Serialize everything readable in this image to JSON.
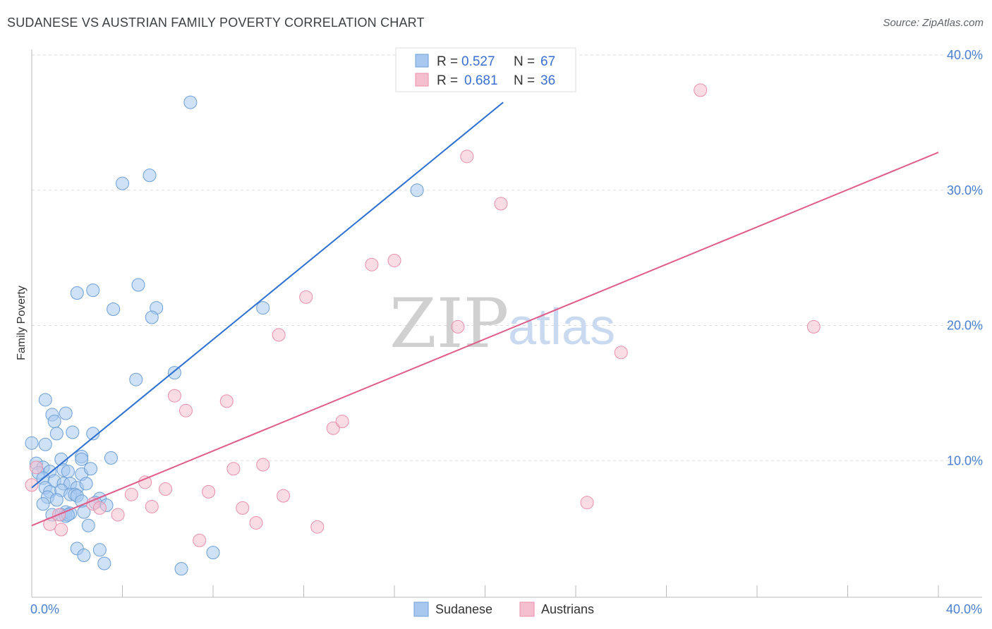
{
  "title": "SUDANESE VS AUSTRIAN FAMILY POVERTY CORRELATION CHART",
  "source": "Source: ZipAtlas.com",
  "watermark": {
    "zip": "ZIP",
    "atlas": "atlas"
  },
  "colors": {
    "sudanese_fill": "#a8c8f0",
    "sudanese_stroke": "#6b9fd8",
    "sudanese_line": "#2b6fd1",
    "austrians_fill": "#f6bfd0",
    "austrians_stroke": "#e98fab",
    "austrians_line": "#e05c8a",
    "tick_text": "#4a7fd0",
    "grid": "#dddddd"
  },
  "legend": {
    "rows": [
      {
        "r_label": "R =",
        "r_value": "0.527",
        "n_label": "N =",
        "n_value": "67"
      },
      {
        "r_label": "R =",
        "r_value": "0.681",
        "n_label": "N =",
        "n_value": "36"
      }
    ]
  },
  "bottom_legend": [
    "Sudanese",
    "Austrians"
  ],
  "chart_data": {
    "type": "scatter",
    "title": "SUDANESE VS AUSTRIAN FAMILY POVERTY CORRELATION CHART",
    "xlabel": "",
    "ylabel": "Family Poverty",
    "xlim": [
      0,
      40
    ],
    "ylim": [
      0,
      40
    ],
    "x_tick_labels": [
      "0.0%",
      "40.0%"
    ],
    "y_ticks": [
      10,
      20,
      30,
      40
    ],
    "y_tick_labels": [
      "10.0%",
      "20.0%",
      "30.0%",
      "40.0%"
    ],
    "grid": true,
    "legend_position": "top-center",
    "series": [
      {
        "name": "Sudanese",
        "r": 0.527,
        "n": 67,
        "trend": {
          "x0": 0,
          "y0": 8.0,
          "x1": 20.8,
          "y1": 36.5
        },
        "points": [
          [
            7.0,
            36.5
          ],
          [
            4.0,
            30.5
          ],
          [
            5.2,
            31.1
          ],
          [
            17.0,
            30.0
          ],
          [
            2.0,
            22.4
          ],
          [
            2.7,
            22.6
          ],
          [
            4.7,
            23.0
          ],
          [
            3.6,
            21.2
          ],
          [
            5.5,
            21.3
          ],
          [
            5.3,
            20.6
          ],
          [
            10.2,
            21.3
          ],
          [
            4.6,
            16.0
          ],
          [
            6.3,
            16.5
          ],
          [
            0.6,
            14.5
          ],
          [
            0.9,
            13.4
          ],
          [
            1.5,
            13.5
          ],
          [
            1.0,
            12.9
          ],
          [
            0.6,
            11.2
          ],
          [
            1.1,
            12.0
          ],
          [
            1.8,
            12.1
          ],
          [
            2.7,
            12.0
          ],
          [
            0.0,
            11.3
          ],
          [
            1.3,
            10.1
          ],
          [
            2.2,
            10.3
          ],
          [
            2.2,
            10.1
          ],
          [
            3.5,
            10.2
          ],
          [
            0.2,
            9.8
          ],
          [
            0.5,
            9.5
          ],
          [
            0.3,
            9.1
          ],
          [
            0.8,
            9.2
          ],
          [
            1.4,
            9.3
          ],
          [
            1.6,
            9.2
          ],
          [
            2.2,
            9.0
          ],
          [
            2.6,
            9.4
          ],
          [
            0.5,
            8.7
          ],
          [
            1.0,
            8.5
          ],
          [
            1.4,
            8.3
          ],
          [
            1.7,
            8.3
          ],
          [
            2.0,
            8.0
          ],
          [
            2.4,
            8.3
          ],
          [
            0.6,
            8.0
          ],
          [
            0.8,
            7.7
          ],
          [
            1.3,
            7.8
          ],
          [
            1.7,
            7.5
          ],
          [
            1.9,
            7.5
          ],
          [
            2.0,
            7.4
          ],
          [
            0.7,
            7.3
          ],
          [
            1.1,
            7.1
          ],
          [
            2.2,
            7.0
          ],
          [
            0.5,
            6.8
          ],
          [
            3.0,
            7.2
          ],
          [
            2.8,
            6.9
          ],
          [
            3.3,
            6.7
          ],
          [
            1.5,
            6.2
          ],
          [
            2.3,
            6.2
          ],
          [
            0.9,
            6.0
          ],
          [
            1.3,
            6.0
          ],
          [
            1.5,
            5.9
          ],
          [
            1.7,
            6.1
          ],
          [
            2.5,
            5.2
          ],
          [
            1.6,
            6.0
          ],
          [
            2.0,
            3.5
          ],
          [
            3.0,
            3.4
          ],
          [
            8.0,
            3.2
          ],
          [
            2.3,
            3.0
          ],
          [
            3.2,
            2.4
          ],
          [
            6.6,
            2.0
          ]
        ]
      },
      {
        "name": "Austrians",
        "r": 0.681,
        "n": 36,
        "trend": {
          "x0": 0,
          "y0": 5.2,
          "x1": 40,
          "y1": 32.8
        },
        "points": [
          [
            29.5,
            37.4
          ],
          [
            19.2,
            32.5
          ],
          [
            20.7,
            29.0
          ],
          [
            15.0,
            24.5
          ],
          [
            16.0,
            24.8
          ],
          [
            12.1,
            22.1
          ],
          [
            18.8,
            19.9
          ],
          [
            34.5,
            19.9
          ],
          [
            10.9,
            19.3
          ],
          [
            26.0,
            18.0
          ],
          [
            6.3,
            14.8
          ],
          [
            8.6,
            14.4
          ],
          [
            6.8,
            13.7
          ],
          [
            13.3,
            12.4
          ],
          [
            13.7,
            12.9
          ],
          [
            8.9,
            9.4
          ],
          [
            10.2,
            9.7
          ],
          [
            0.2,
            9.5
          ],
          [
            0.0,
            8.2
          ],
          [
            5.0,
            8.4
          ],
          [
            5.9,
            7.9
          ],
          [
            7.8,
            7.7
          ],
          [
            11.1,
            7.4
          ],
          [
            4.4,
            7.5
          ],
          [
            2.7,
            6.8
          ],
          [
            3.0,
            6.5
          ],
          [
            5.3,
            6.6
          ],
          [
            9.3,
            6.5
          ],
          [
            24.5,
            6.9
          ],
          [
            1.2,
            6.0
          ],
          [
            3.8,
            6.0
          ],
          [
            0.8,
            5.3
          ],
          [
            9.9,
            5.4
          ],
          [
            12.6,
            5.1
          ],
          [
            1.3,
            4.9
          ],
          [
            7.4,
            4.1
          ]
        ]
      }
    ]
  }
}
